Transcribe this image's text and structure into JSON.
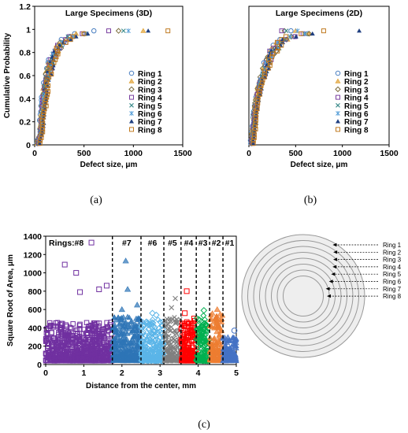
{
  "colors": {
    "ring1": "#4a7fc1",
    "ring2": "#e0a030",
    "ring3": "#7a6a3a",
    "ring4": "#7a3fa0",
    "ring5": "#3a8a8a",
    "ring6": "#5aa0d8",
    "ring7": "#1f3f80",
    "ring8": "#c07a20",
    "c_purple": "#7030a0",
    "c_blue": "#2e75b6",
    "c_lightblue": "#5bb5e8",
    "c_gray": "#808080",
    "c_red": "#ff0000",
    "c_green": "#00b050",
    "c_orange": "#ed7d31",
    "c_darkblue": "#4472c4",
    "disk_fill": "#eeeeee",
    "disk_stroke": "#999999"
  },
  "captions": {
    "a": "(a)",
    "b": "(b)",
    "c": "(c)"
  },
  "chart_data": [
    {
      "type": "scatter",
      "title": "Large Specimens (3D)",
      "xlabel": "Defect size, μm",
      "ylabel": "Cumulative Probability",
      "xlim": [
        0,
        1500
      ],
      "ylim": [
        0,
        1.2
      ],
      "xticks": [
        "0",
        "500",
        "1000",
        "1500"
      ],
      "yticks": [
        "0",
        "0.2",
        "0.4",
        "0.6",
        "0.8",
        "1",
        "1.2"
      ],
      "legend_position": "bottom-right",
      "series": [
        {
          "name": "Ring 1",
          "marker": "circle",
          "color": "ring1",
          "max_x": 600
        },
        {
          "name": "Ring 2",
          "marker": "triangle",
          "color": "ring2",
          "max_x": 1100
        },
        {
          "name": "Ring 3",
          "marker": "diamond",
          "color": "ring3",
          "max_x": 850
        },
        {
          "name": "Ring 4",
          "marker": "square",
          "color": "ring4",
          "max_x": 750
        },
        {
          "name": "Ring 5",
          "marker": "x",
          "color": "ring5",
          "max_x": 900
        },
        {
          "name": "Ring 6",
          "marker": "star",
          "color": "ring6",
          "max_x": 950
        },
        {
          "name": "Ring 7",
          "marker": "filled-triangle",
          "color": "ring7",
          "max_x": 1150
        },
        {
          "name": "Ring 8",
          "marker": "square",
          "color": "ring8",
          "max_x": 1350
        }
      ],
      "curve_points": [
        [
          30,
          0
        ],
        [
          60,
          0.1
        ],
        [
          80,
          0.3
        ],
        [
          100,
          0.45
        ],
        [
          130,
          0.6
        ],
        [
          170,
          0.72
        ],
        [
          220,
          0.82
        ],
        [
          300,
          0.9
        ],
        [
          400,
          0.95
        ],
        [
          550,
          0.98
        ],
        [
          800,
          0.99
        ],
        [
          1000,
          1.0
        ]
      ]
    },
    {
      "type": "scatter",
      "title": "Large Specimens (2D)",
      "xlabel": "Defect size, μm",
      "ylabel": "",
      "xlim": [
        0,
        1500
      ],
      "ylim": [
        0,
        1.2
      ],
      "xticks": [
        "0",
        "500",
        "1000",
        "1500"
      ],
      "legend_position": "bottom-right",
      "series": [
        {
          "name": "Ring 1",
          "marker": "circle",
          "color": "ring1",
          "max_x": 450
        },
        {
          "name": "Ring 2",
          "marker": "triangle",
          "color": "ring2",
          "max_x": 500
        },
        {
          "name": "Ring 3",
          "marker": "diamond",
          "color": "ring3",
          "max_x": 380
        },
        {
          "name": "Ring 4",
          "marker": "square",
          "color": "ring4",
          "max_x": 350
        },
        {
          "name": "Ring 5",
          "marker": "x",
          "color": "ring5",
          "max_x": 400
        },
        {
          "name": "Ring 6",
          "marker": "star",
          "color": "ring6",
          "max_x": 520
        },
        {
          "name": "Ring 7",
          "marker": "filled-triangle",
          "color": "ring7",
          "max_x": 1180
        },
        {
          "name": "Ring 8",
          "marker": "square",
          "color": "ring8",
          "max_x": 800
        }
      ],
      "curve_points": [
        [
          30,
          0
        ],
        [
          50,
          0.15
        ],
        [
          70,
          0.3
        ],
        [
          100,
          0.45
        ],
        [
          140,
          0.58
        ],
        [
          190,
          0.7
        ],
        [
          250,
          0.8
        ],
        [
          320,
          0.88
        ],
        [
          400,
          0.93
        ],
        [
          550,
          0.96
        ],
        [
          800,
          0.97
        ],
        [
          1180,
          0.98
        ]
      ]
    },
    {
      "type": "scatter",
      "title": "",
      "xlabel": "Distance from the center, mm",
      "ylabel": "Square Root of Area, μm",
      "xlim": [
        0,
        5
      ],
      "ylim": [
        0,
        1400
      ],
      "xticks": [
        "0",
        "1",
        "2",
        "3",
        "4",
        "5"
      ],
      "yticks": [
        "0",
        "200",
        "400",
        "600",
        "800",
        "1000",
        "1200",
        "1400"
      ],
      "rings_label": "Rings:",
      "zones": [
        {
          "label": "#8",
          "x_start": 0,
          "x_end": 1.75,
          "color": "c_purple",
          "typical_max": 420,
          "outliers": [
            [
              0.5,
              1090
            ],
            [
              0.8,
              1000
            ],
            [
              1.2,
              1330
            ],
            [
              1.4,
              820
            ],
            [
              0.9,
              790
            ],
            [
              1.6,
              860
            ]
          ]
        },
        {
          "label": "#7",
          "x_start": 1.75,
          "x_end": 2.5,
          "color": "c_blue",
          "typical_max": 480,
          "outliers": [
            [
              2.1,
              1130
            ],
            [
              2.15,
              820
            ],
            [
              2.4,
              650
            ],
            [
              2.0,
              600
            ]
          ]
        },
        {
          "label": "#6",
          "x_start": 2.5,
          "x_end": 3.1,
          "color": "c_lightblue",
          "typical_max": 450,
          "outliers": [
            [
              2.8,
              560
            ],
            [
              2.9,
              540
            ]
          ]
        },
        {
          "label": "#5",
          "x_start": 3.1,
          "x_end": 3.55,
          "color": "c_gray",
          "typical_max": 480,
          "outliers": [
            [
              3.4,
              720
            ],
            [
              3.3,
              620
            ]
          ]
        },
        {
          "label": "#4",
          "x_start": 3.55,
          "x_end": 3.95,
          "color": "c_red",
          "typical_max": 470,
          "outliers": [
            [
              3.7,
              800
            ],
            [
              3.65,
              560
            ]
          ]
        },
        {
          "label": "#3",
          "x_start": 3.95,
          "x_end": 4.3,
          "color": "c_green",
          "typical_max": 500,
          "outliers": [
            [
              4.15,
              590
            ]
          ]
        },
        {
          "label": "#2",
          "x_start": 4.3,
          "x_end": 4.65,
          "color": "c_orange",
          "typical_max": 520,
          "outliers": [
            [
              4.5,
              600
            ]
          ]
        },
        {
          "label": "#1",
          "x_start": 4.65,
          "x_end": 5.0,
          "color": "c_darkblue",
          "typical_max": 260,
          "outliers": [
            [
              4.95,
              370
            ]
          ]
        }
      ]
    }
  ],
  "ring_diagram": {
    "labels": [
      "Ring 1",
      "Ring 2",
      "Ring 3",
      "Ring 4",
      "Ring 5",
      "Ring 6",
      "Ring 7",
      "Ring 8"
    ]
  }
}
